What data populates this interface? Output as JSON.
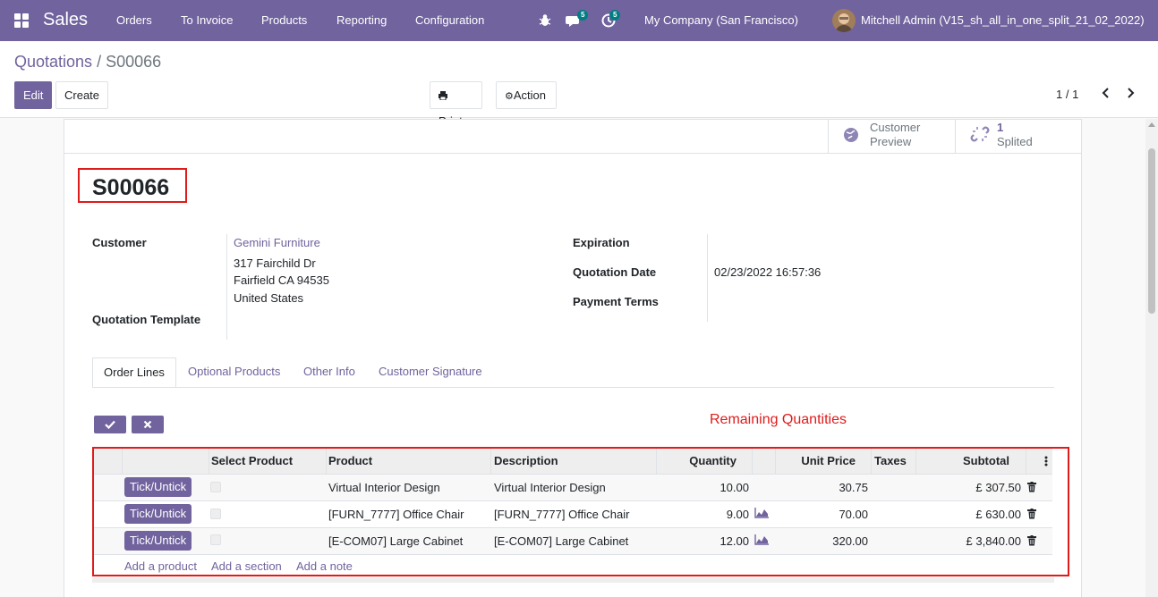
{
  "nav": {
    "app": "Sales",
    "menus": [
      "Orders",
      "To Invoice",
      "Products",
      "Reporting",
      "Configuration"
    ],
    "chat_badge": "5",
    "activity_badge": "5",
    "company": "My Company (San Francisco)",
    "user": "Mitchell Admin (V15_sh_all_in_one_split_21_02_2022)"
  },
  "breadcrumb": {
    "parent": "Quotations",
    "separator": "/",
    "current": "S00066"
  },
  "buttons": {
    "edit": "Edit",
    "create": "Create",
    "print": "Print",
    "action": "Action"
  },
  "pager": "1 / 1",
  "smart_buttons": {
    "preview_line1": "Customer",
    "preview_line2": "Preview",
    "split_count": "1",
    "split_label": "Splited"
  },
  "record": {
    "name": "S00066",
    "customer_label": "Customer",
    "customer_name": "Gemini Furniture",
    "address": [
      "317 Fairchild Dr",
      "Fairfield CA 94535",
      "United States"
    ],
    "template_label": "Quotation Template",
    "expiration_label": "Expiration",
    "quotation_date_label": "Quotation Date",
    "quotation_date": "02/23/2022 16:57:36",
    "payment_terms_label": "Payment Terms"
  },
  "tabs": [
    "Order Lines",
    "Optional Products",
    "Other Info",
    "Customer Signature"
  ],
  "remaining_label": "Remaining Quantities",
  "table": {
    "headers": {
      "select": "Select Product",
      "product": "Product",
      "description": "Description",
      "quantity": "Quantity",
      "unit_price": "Unit Price",
      "taxes": "Taxes",
      "subtotal": "Subtotal"
    },
    "rows": [
      {
        "tick": "Tick/Untick",
        "product": "Virtual Interior Design",
        "description": "Virtual Interior Design",
        "quantity": "10.00",
        "unit_price": "30.75",
        "subtotal": "£ 307.50",
        "forecast": false
      },
      {
        "tick": "Tick/Untick",
        "product": "[FURN_7777] Office Chair",
        "description": "[FURN_7777] Office Chair",
        "quantity": "9.00",
        "unit_price": "70.00",
        "subtotal": "£ 630.00",
        "forecast": true
      },
      {
        "tick": "Tick/Untick",
        "product": "[E-COM07] Large Cabinet",
        "description": "[E-COM07] Large Cabinet",
        "quantity": "12.00",
        "unit_price": "320.00",
        "subtotal": "£ 3,840.00",
        "forecast": true
      }
    ],
    "add_product": "Add a product",
    "add_section": "Add a section",
    "add_note": "Add a note"
  },
  "colors": {
    "primary": "#71639e",
    "highlight": "#e01b1b",
    "badge": "#017e84"
  }
}
